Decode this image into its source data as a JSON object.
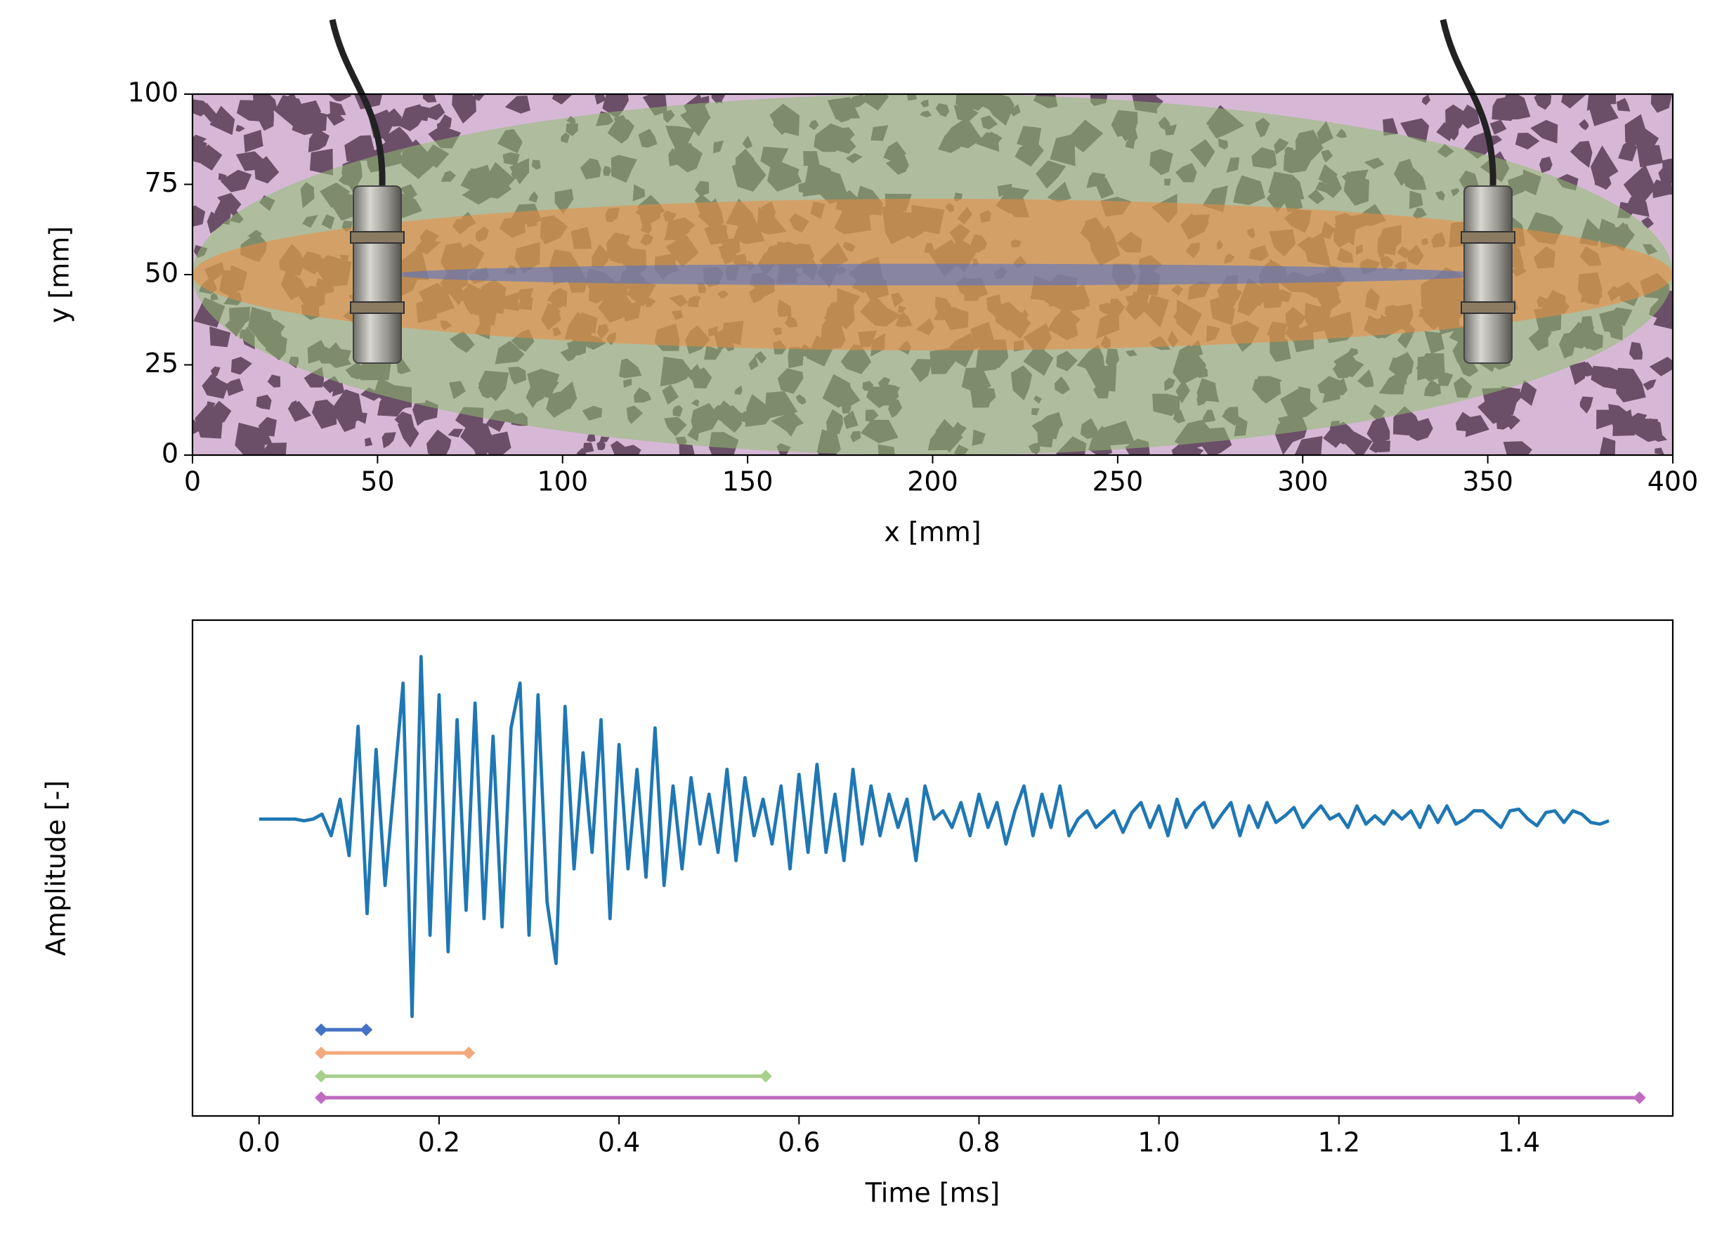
{
  "chart_data": [
    {
      "type": "ellipse",
      "xlabel": "x [mm]",
      "ylabel": "y [mm]",
      "xlim": [
        0,
        400
      ],
      "ylim": [
        0,
        100
      ],
      "xticks": [
        0,
        50,
        100,
        150,
        200,
        250,
        300,
        350,
        400
      ],
      "yticks": [
        0,
        25,
        50,
        75,
        100
      ],
      "regions": [
        {
          "color": "#8fbf6f",
          "cx": 200,
          "cy": 50,
          "rx": 200,
          "ry": 50
        },
        {
          "color": "#f08a3c",
          "cx": 200,
          "cy": 50,
          "rx": 200,
          "ry": 21
        },
        {
          "color": "#4a6fd0",
          "cx": 201.5,
          "cy": 50,
          "rx": 147.5,
          "ry": 3
        }
      ]
    },
    {
      "type": "line",
      "xlabel": "Time [ms]",
      "ylabel": "Amplitude [-]",
      "xlim": [
        -0.074,
        1.571
      ],
      "ylim": [
        -1.79,
        1.2
      ],
      "xticks": [
        {
          "value": 0,
          "label": "0.0"
        },
        0.2,
        0.4,
        0.6,
        0.8,
        {
          "value": 1,
          "label": "1.0"
        },
        1.2,
        1.4
      ],
      "series": [
        {
          "color": "#1f77b4",
          "x": [
            0,
            0.01,
            0.02,
            0.03,
            0.04,
            0.05,
            0.06,
            0.07,
            0.08,
            0.09,
            0.1,
            0.11,
            0.12,
            0.13,
            0.14,
            0.15,
            0.16,
            0.17,
            0.18,
            0.19,
            0.2,
            0.21,
            0.22,
            0.23,
            0.24,
            0.25,
            0.26,
            0.27,
            0.28,
            0.29,
            0.3,
            0.31,
            0.32,
            0.33,
            0.34,
            0.35,
            0.36,
            0.37,
            0.38,
            0.39,
            0.4,
            0.41,
            0.42,
            0.43,
            0.44,
            0.45,
            0.46,
            0.47,
            0.48,
            0.49,
            0.5,
            0.51,
            0.52,
            0.53,
            0.54,
            0.55,
            0.56,
            0.57,
            0.58,
            0.59,
            0.6,
            0.61,
            0.62,
            0.63,
            0.64,
            0.65,
            0.66,
            0.67,
            0.68,
            0.69,
            0.7,
            0.71,
            0.72,
            0.73,
            0.74,
            0.75,
            0.76,
            0.77,
            0.78,
            0.79,
            0.8,
            0.81,
            0.82,
            0.83,
            0.84,
            0.85,
            0.86,
            0.87,
            0.88,
            0.89,
            0.9,
            0.91,
            0.92,
            0.93,
            0.94,
            0.95,
            0.96,
            0.97,
            0.98,
            0.99,
            1,
            1.01,
            1.02,
            1.03,
            1.04,
            1.05,
            1.06,
            1.07,
            1.08,
            1.09,
            1.1,
            1.11,
            1.12,
            1.13,
            1.14,
            1.15,
            1.16,
            1.17,
            1.18,
            1.19,
            1.2,
            1.21,
            1.22,
            1.23,
            1.24,
            1.25,
            1.26,
            1.27,
            1.28,
            1.29,
            1.3,
            1.31,
            1.32,
            1.33,
            1.34,
            1.35,
            1.36,
            1.37,
            1.38,
            1.39,
            1.4,
            1.41,
            1.42,
            1.43,
            1.44,
            1.45,
            1.46,
            1.47,
            1.48,
            1.49,
            1.5
          ],
          "values": [
            0,
            0,
            0,
            0,
            0,
            -0.01,
            0,
            0.03,
            -0.1,
            0.12,
            -0.22,
            0.56,
            -0.57,
            0.42,
            -0.4,
            0.2,
            0.82,
            -1.19,
            0.98,
            -0.7,
            0.75,
            -0.8,
            0.6,
            -0.55,
            0.7,
            -0.6,
            0.5,
            -0.65,
            0.55,
            0.82,
            -0.7,
            0.75,
            -0.5,
            -0.87,
            0.68,
            -0.3,
            0.4,
            -0.2,
            0.6,
            -0.6,
            0.45,
            -0.3,
            0.3,
            -0.35,
            0.55,
            -0.4,
            0.2,
            -0.3,
            0.25,
            -0.15,
            0.15,
            -0.2,
            0.3,
            -0.25,
            0.25,
            -0.1,
            0.12,
            -0.15,
            0.2,
            -0.3,
            0.27,
            -0.2,
            0.33,
            -0.2,
            0.15,
            -0.25,
            0.3,
            -0.15,
            0.2,
            -0.1,
            0.15,
            -0.05,
            0.12,
            -0.25,
            0.2,
            0,
            0.05,
            -0.05,
            0.1,
            -0.1,
            0.15,
            -0.05,
            0.1,
            -0.15,
            0.05,
            0.2,
            -0.1,
            0.15,
            -0.05,
            0.2,
            -0.1,
            0,
            0.05,
            -0.05,
            0,
            0.05,
            -0.08,
            0.04,
            0.1,
            -0.05,
            0.08,
            -0.1,
            0.12,
            -0.05,
            0.05,
            0.1,
            -0.05,
            0.03,
            0.1,
            -0.1,
            0.08,
            -0.05,
            0.1,
            -0.02,
            0.02,
            0.07,
            -0.05,
            0.02,
            0.08,
            0,
            0.03,
            -0.05,
            0.08,
            -0.03,
            0.02,
            -0.03,
            0.05,
            0,
            0.05,
            -0.05,
            0.08,
            -0.02,
            0.08,
            -0.03,
            0,
            0.05,
            0.05,
            0,
            -0.05,
            0.05,
            0.06,
            0,
            -0.04,
            0.04,
            0.05,
            -0.02,
            0.05,
            0.03,
            -0.02,
            -0.03,
            -0.01
          ]
        }
      ],
      "ranges": [
        {
          "color": "#4472c4",
          "y": -1.27,
          "values": [
            0.069,
            0.119
          ]
        },
        {
          "color": "#f4a97c",
          "y": -1.41,
          "values": [
            0.069,
            0.233
          ]
        },
        {
          "color": "#a8d08d",
          "y": -1.55,
          "values": [
            0.069,
            0.563
          ]
        },
        {
          "color": "#c06ac0",
          "y": -1.68,
          "values": [
            0.069,
            1.534
          ]
        }
      ]
    }
  ]
}
